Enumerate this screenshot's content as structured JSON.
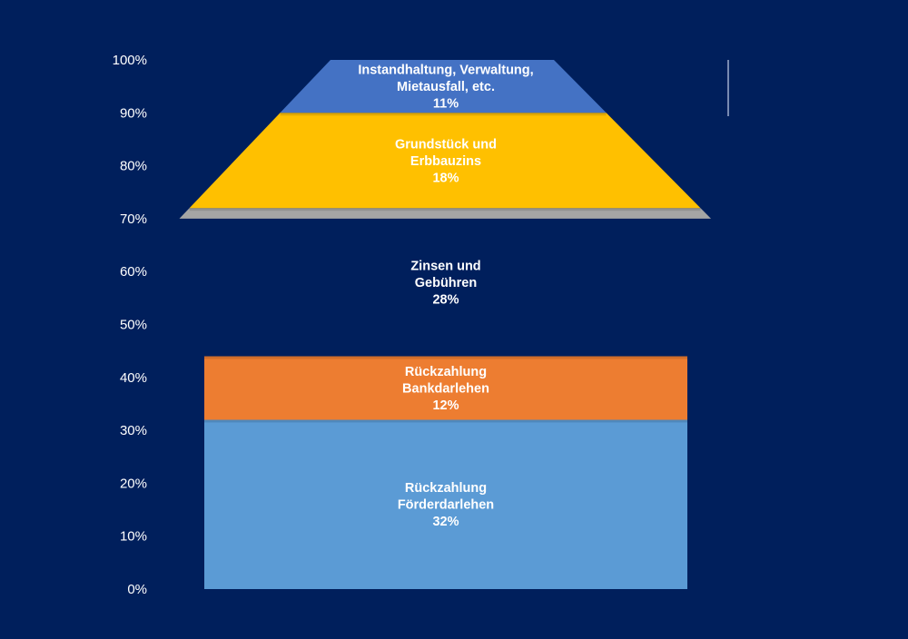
{
  "chart_data": {
    "type": "area",
    "title": "",
    "xlabel": "",
    "ylabel": "",
    "ylim": [
      0,
      100
    ],
    "y_ticks": [
      "0%",
      "10%",
      "20%",
      "30%",
      "40%",
      "50%",
      "60%",
      "70%",
      "80%",
      "90%",
      "100%"
    ],
    "grid": false,
    "legend": "none",
    "segments": [
      {
        "lines": [
          "Rückzahlung",
          "Förderdarlehen"
        ],
        "value_label": "32%",
        "value": 32,
        "color": "#5b9bd5"
      },
      {
        "lines": [
          "Rückzahlung",
          "Bankdarlehen"
        ],
        "value_label": "12%",
        "value": 12,
        "color": "#ed7d31"
      },
      {
        "lines": [
          "Zinsen und",
          "Gebühren"
        ],
        "value_label": "28%",
        "value": 28,
        "color": "#a5a5a5"
      },
      {
        "lines": [
          "Grundstück und",
          "Erbbauzins"
        ],
        "value_label": "18%",
        "value": 18,
        "color": "#ffc000"
      },
      {
        "lines": [
          "Instandhaltung, Verwaltung,",
          "Mietausfall, etc."
        ],
        "value_label": "11%",
        "value": 11,
        "color": "#4472c4"
      }
    ]
  },
  "colors": {
    "background": "#001f5c"
  }
}
